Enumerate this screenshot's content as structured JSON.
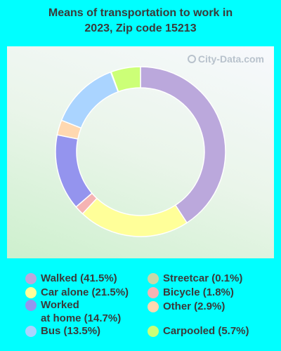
{
  "chart_data": {
    "type": "pie",
    "title_lines": [
      "Means of transportation to work in",
      "2023, Zip code 15213"
    ],
    "watermark": "City-Data.com",
    "slices": [
      {
        "label": "Walked (41.5%)",
        "value": 41.5,
        "color": "#bba8dc"
      },
      {
        "label": "Car alone (21.5%)",
        "value": 21.5,
        "color": "#ffff99"
      },
      {
        "label": "Bicycle (1.8%)",
        "value": 1.8,
        "color": "#f5b3b3"
      },
      {
        "label": "Worked\nat home (14.7%)",
        "value": 14.7,
        "color": "#9494ee"
      },
      {
        "label": "Other (2.9%)",
        "value": 2.9,
        "color": "#ffd8b0"
      },
      {
        "label": "Bus (13.5%)",
        "value": 13.5,
        "color": "#aad4ff"
      },
      {
        "label": "Streetcar (0.1%)",
        "value": 0.1,
        "color": "#c8d8a8"
      },
      {
        "label": "Carpooled (5.7%)",
        "value": 5.7,
        "color": "#ccff77"
      }
    ],
    "legend_order": [
      0,
      6,
      1,
      2,
      3,
      4,
      5,
      7
    ]
  }
}
